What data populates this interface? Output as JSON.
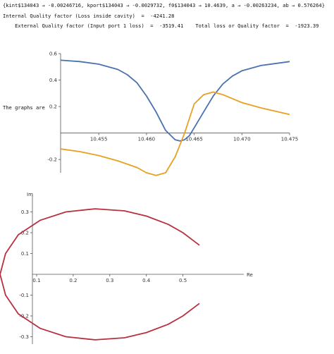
{
  "output": {
    "rules_line": "{kint$134043 → -0.00246716, kport$134043 → -0.0029732, f0$134043 → 10.4639, a → -0.00263234, ab → 0.576264}",
    "internal_q_line": "Internal Quality factor (Loss inside cavity)  =  -4241.28",
    "external_q_line": "    External Quality factor (Input port 1 loss)  =  -3519.41    Total loss or Quality factor  =  -1923.39",
    "graphs_label": "The graphs are"
  },
  "chart_data": [
    {
      "type": "line",
      "title": "",
      "xlabel": "",
      "ylabel": "",
      "xlim": [
        10.451,
        10.475
      ],
      "ylim": [
        -0.3,
        0.6
      ],
      "x_ticks": [
        "10.455",
        "10.460",
        "10.465",
        "10.470",
        "10.475"
      ],
      "y_ticks": [
        "-0.2",
        "0.2",
        "0.4",
        "0.6"
      ],
      "grid": false,
      "series": [
        {
          "color": "#4a72b0",
          "x": [
            10.451,
            10.453,
            10.455,
            10.457,
            10.458,
            10.459,
            10.46,
            10.461,
            10.462,
            10.463,
            10.4635,
            10.464,
            10.4645,
            10.465,
            10.466,
            10.467,
            10.468,
            10.469,
            10.47,
            10.472,
            10.475
          ],
          "y": [
            0.55,
            0.54,
            0.52,
            0.48,
            0.44,
            0.38,
            0.28,
            0.16,
            0.02,
            -0.05,
            -0.06,
            -0.05,
            -0.02,
            0.04,
            0.16,
            0.28,
            0.37,
            0.43,
            0.47,
            0.51,
            0.54
          ]
        },
        {
          "color": "#e8a020",
          "x": [
            10.451,
            10.453,
            10.455,
            10.457,
            10.459,
            10.46,
            10.461,
            10.462,
            10.463,
            10.4635,
            10.464,
            10.4645,
            10.465,
            10.466,
            10.467,
            10.468,
            10.469,
            10.47,
            10.472,
            10.475
          ],
          "y": [
            -0.12,
            -0.14,
            -0.17,
            -0.21,
            -0.26,
            -0.3,
            -0.32,
            -0.3,
            -0.18,
            -0.09,
            0.0,
            0.11,
            0.22,
            0.29,
            0.31,
            0.29,
            0.26,
            0.23,
            0.19,
            0.14
          ]
        }
      ]
    },
    {
      "type": "line",
      "title": "",
      "xlabel": "Re",
      "ylabel": "Im",
      "xlim": [
        -0.01,
        0.56
      ],
      "ylim": [
        -0.35,
        0.35
      ],
      "x_ticks": [
        "0.1",
        "0.2",
        "0.3",
        "0.4",
        "0.5"
      ],
      "y_ticks": [
        "-0.3",
        "-0.2",
        "-0.1",
        "0.1",
        "0.2",
        "0.3"
      ],
      "grid": false,
      "series": [
        {
          "color": "#b83040",
          "x": [
            0.545,
            0.53,
            0.5,
            0.46,
            0.4,
            0.34,
            0.26,
            0.18,
            0.11,
            0.05,
            0.015,
            0.0,
            0.015,
            0.05,
            0.11,
            0.18,
            0.26,
            0.34,
            0.4,
            0.46,
            0.5,
            0.53,
            0.545
          ],
          "y": [
            0.14,
            0.16,
            0.2,
            0.24,
            0.28,
            0.305,
            0.315,
            0.3,
            0.26,
            0.19,
            0.1,
            0.0,
            -0.1,
            -0.19,
            -0.26,
            -0.3,
            -0.315,
            -0.305,
            -0.28,
            -0.24,
            -0.2,
            -0.16,
            -0.14
          ]
        }
      ]
    }
  ]
}
